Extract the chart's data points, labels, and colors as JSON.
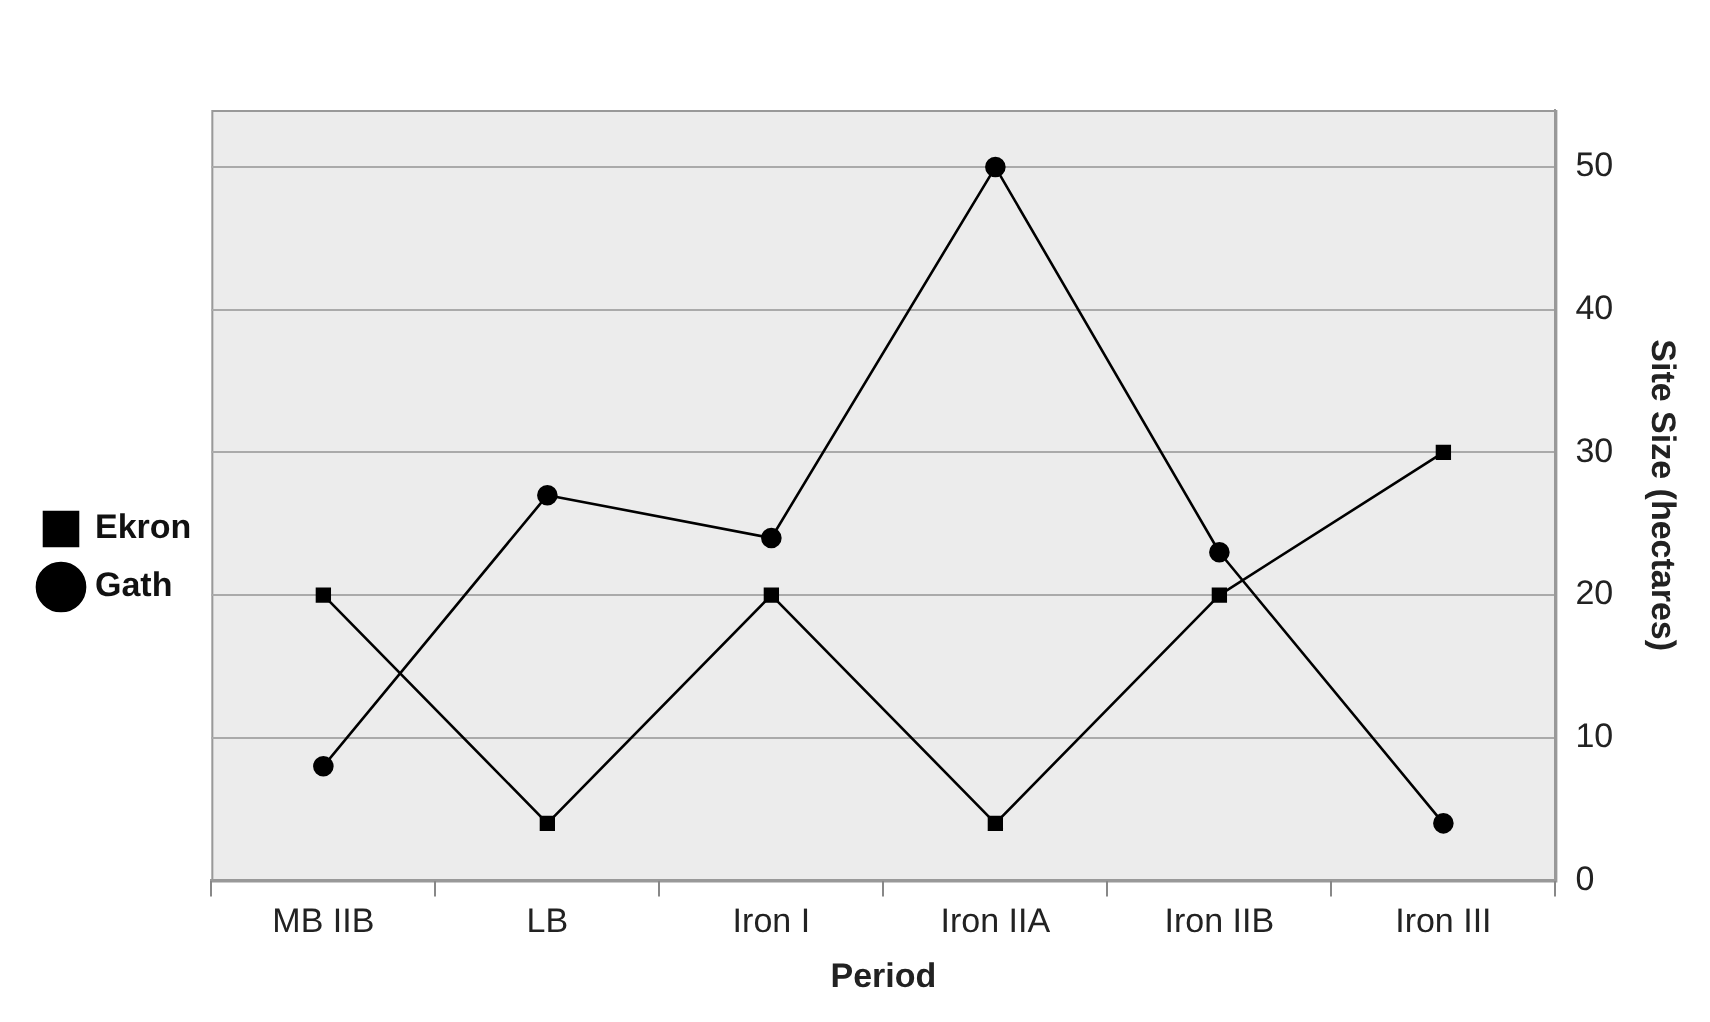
{
  "chart_data": {
    "type": "line",
    "xlabel": "Period",
    "ylabel": "Site Size (hectares)",
    "categories": [
      "MB IIB",
      "LB",
      "Iron I",
      "Iron IIA",
      "Iron IIB",
      "Iron III"
    ],
    "series": [
      {
        "name": "Ekron",
        "color": "#000000",
        "marker": "square",
        "values": [
          20,
          4,
          20,
          4,
          20,
          30
        ]
      },
      {
        "name": "Gath",
        "color": "#000000",
        "marker": "circle",
        "values": [
          8,
          27,
          24,
          50,
          23,
          4
        ]
      }
    ],
    "ylim": [
      0,
      54
    ],
    "yticks": [
      0,
      10,
      20,
      30,
      40,
      50
    ],
    "grid": "y",
    "legend": "left",
    "line_style": "solid"
  }
}
